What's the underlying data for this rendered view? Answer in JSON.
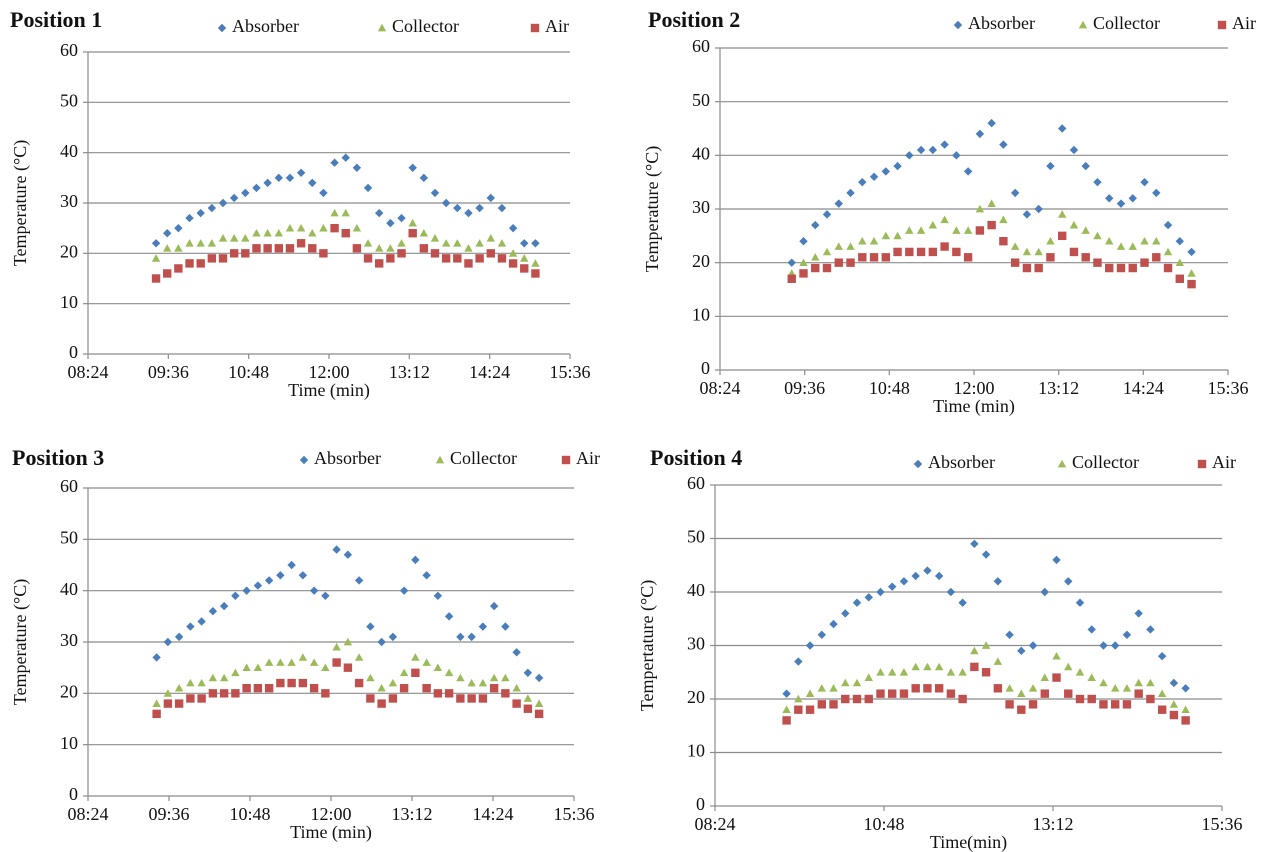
{
  "chart_data": [
    {
      "type": "scatter",
      "title": "Position 1",
      "xlabel": "Time (min)",
      "ylabel": "Temperature (°C)",
      "x": [
        565,
        575,
        585,
        595,
        605,
        615,
        625,
        635,
        645,
        655,
        665,
        675,
        685,
        695,
        705,
        715,
        725,
        735,
        745,
        755,
        765,
        775,
        785,
        795,
        805,
        815,
        825,
        835,
        845,
        855,
        865,
        875,
        885,
        895,
        905
      ],
      "series": [
        {
          "name": "Absorber",
          "color": "#4a7ebb",
          "marker": "diamond",
          "values": [
            22,
            24,
            25,
            27,
            28,
            29,
            30,
            31,
            32,
            33,
            34,
            35,
            35,
            36,
            34,
            32,
            38,
            39,
            37,
            33,
            28,
            26,
            27,
            37,
            35,
            32,
            30,
            29,
            28,
            29,
            31,
            29,
            25,
            22,
            22
          ]
        },
        {
          "name": "Collector",
          "color": "#9bbb59",
          "marker": "triangle",
          "values": [
            19,
            21,
            21,
            22,
            22,
            22,
            23,
            23,
            23,
            24,
            24,
            24,
            25,
            25,
            24,
            25,
            28,
            28,
            25,
            22,
            21,
            21,
            22,
            26,
            24,
            23,
            22,
            22,
            21,
            22,
            23,
            22,
            20,
            19,
            18
          ]
        },
        {
          "name": "Air",
          "color": "#c0504d",
          "marker": "square",
          "values": [
            15,
            16,
            17,
            18,
            18,
            19,
            19,
            20,
            20,
            21,
            21,
            21,
            21,
            22,
            21,
            20,
            25,
            24,
            21,
            19,
            18,
            19,
            20,
            24,
            21,
            20,
            19,
            19,
            18,
            19,
            20,
            19,
            18,
            17,
            16
          ]
        }
      ],
      "xlim": [
        504,
        936
      ],
      "ylim": [
        0,
        60
      ],
      "xticks": [
        {
          "value": 504,
          "label": "08:24"
        },
        {
          "value": 576,
          "label": "09:36"
        },
        {
          "value": 648,
          "label": "10:48"
        },
        {
          "value": 720,
          "label": "12:00"
        },
        {
          "value": 792,
          "label": "13:12"
        },
        {
          "value": 864,
          "label": "14:24"
        },
        {
          "value": 936,
          "label": "15:36"
        }
      ],
      "yticks": [
        0,
        10,
        20,
        30,
        40,
        50,
        60
      ],
      "grid": true
    },
    {
      "type": "scatter",
      "title": "Position 2",
      "xlabel": "Time (min)",
      "ylabel": "Temperature (°C)",
      "x": [
        565,
        575,
        585,
        595,
        605,
        615,
        625,
        635,
        645,
        655,
        665,
        675,
        685,
        695,
        705,
        715,
        725,
        735,
        745,
        755,
        765,
        775,
        785,
        795,
        805,
        815,
        825,
        835,
        845,
        855,
        865,
        875,
        885,
        895,
        905
      ],
      "series": [
        {
          "name": "Absorber",
          "color": "#4a7ebb",
          "marker": "diamond",
          "values": [
            20,
            24,
            27,
            29,
            31,
            33,
            35,
            36,
            37,
            38,
            40,
            41,
            41,
            42,
            40,
            37,
            44,
            46,
            42,
            33,
            29,
            30,
            38,
            45,
            41,
            38,
            35,
            32,
            31,
            32,
            35,
            33,
            27,
            24,
            22
          ]
        },
        {
          "name": "Collector",
          "color": "#9bbb59",
          "marker": "triangle",
          "values": [
            18,
            20,
            21,
            22,
            23,
            23,
            24,
            24,
            25,
            25,
            26,
            26,
            27,
            28,
            26,
            26,
            30,
            31,
            28,
            23,
            22,
            22,
            24,
            29,
            27,
            26,
            25,
            24,
            23,
            23,
            24,
            24,
            22,
            20,
            18
          ]
        },
        {
          "name": "Air",
          "color": "#c0504d",
          "marker": "square",
          "values": [
            17,
            18,
            19,
            19,
            20,
            20,
            21,
            21,
            21,
            22,
            22,
            22,
            22,
            23,
            22,
            21,
            26,
            27,
            24,
            20,
            19,
            19,
            21,
            25,
            22,
            21,
            20,
            19,
            19,
            19,
            20,
            21,
            19,
            17,
            16
          ]
        }
      ],
      "xlim": [
        504,
        936
      ],
      "ylim": [
        0,
        60
      ],
      "xticks": [
        {
          "value": 504,
          "label": "08:24"
        },
        {
          "value": 576,
          "label": "09:36"
        },
        {
          "value": 648,
          "label": "10:48"
        },
        {
          "value": 720,
          "label": "12:00"
        },
        {
          "value": 792,
          "label": "13:12"
        },
        {
          "value": 864,
          "label": "14:24"
        },
        {
          "value": 936,
          "label": "15:36"
        }
      ],
      "yticks": [
        0,
        10,
        20,
        30,
        40,
        50,
        60
      ],
      "grid": true
    },
    {
      "type": "scatter",
      "title": "Position 3",
      "xlabel": "Time (min)",
      "ylabel": "Temperature (°C)",
      "x": [
        565,
        575,
        585,
        595,
        605,
        615,
        625,
        635,
        645,
        655,
        665,
        675,
        685,
        695,
        705,
        715,
        725,
        735,
        745,
        755,
        765,
        775,
        785,
        795,
        805,
        815,
        825,
        835,
        845,
        855,
        865,
        875,
        885,
        895,
        905
      ],
      "series": [
        {
          "name": "Absorber",
          "color": "#4a7ebb",
          "marker": "diamond",
          "values": [
            27,
            30,
            31,
            33,
            34,
            36,
            37,
            39,
            40,
            41,
            42,
            43,
            45,
            43,
            40,
            39,
            48,
            47,
            42,
            33,
            30,
            31,
            40,
            46,
            43,
            39,
            35,
            31,
            31,
            33,
            37,
            33,
            28,
            24,
            23
          ]
        },
        {
          "name": "Collector",
          "color": "#9bbb59",
          "marker": "triangle",
          "values": [
            18,
            20,
            21,
            22,
            22,
            23,
            23,
            24,
            25,
            25,
            26,
            26,
            26,
            27,
            26,
            25,
            29,
            30,
            27,
            23,
            21,
            22,
            24,
            27,
            26,
            25,
            24,
            23,
            22,
            22,
            23,
            23,
            21,
            19,
            18
          ]
        },
        {
          "name": "Air",
          "color": "#c0504d",
          "marker": "square",
          "values": [
            16,
            18,
            18,
            19,
            19,
            20,
            20,
            20,
            21,
            21,
            21,
            22,
            22,
            22,
            21,
            20,
            26,
            25,
            22,
            19,
            18,
            19,
            21,
            24,
            21,
            20,
            20,
            19,
            19,
            19,
            21,
            20,
            18,
            17,
            16
          ]
        }
      ],
      "xlim": [
        504,
        936
      ],
      "ylim": [
        0,
        60
      ],
      "xticks": [
        {
          "value": 504,
          "label": "08:24"
        },
        {
          "value": 576,
          "label": "09:36"
        },
        {
          "value": 648,
          "label": "10:48"
        },
        {
          "value": 720,
          "label": "12:00"
        },
        {
          "value": 792,
          "label": "13:12"
        },
        {
          "value": 864,
          "label": "14:24"
        },
        {
          "value": 936,
          "label": "15:36"
        }
      ],
      "yticks": [
        0,
        10,
        20,
        30,
        40,
        50,
        60
      ],
      "grid": true
    },
    {
      "type": "scatter",
      "title": "Position 4",
      "xlabel": "Time(min)",
      "ylabel": "Tempertature (°C)",
      "x": [
        565,
        575,
        585,
        595,
        605,
        615,
        625,
        635,
        645,
        655,
        665,
        675,
        685,
        695,
        705,
        715,
        725,
        735,
        745,
        755,
        765,
        775,
        785,
        795,
        805,
        815,
        825,
        835,
        845,
        855,
        865,
        875,
        885,
        895,
        905
      ],
      "series": [
        {
          "name": "Absorber",
          "color": "#4a7ebb",
          "marker": "diamond",
          "values": [
            21,
            27,
            30,
            32,
            34,
            36,
            38,
            39,
            40,
            41,
            42,
            43,
            44,
            43,
            40,
            38,
            49,
            47,
            42,
            32,
            29,
            30,
            40,
            46,
            42,
            38,
            33,
            30,
            30,
            32,
            36,
            33,
            28,
            23,
            22
          ]
        },
        {
          "name": "Collector",
          "color": "#9bbb59",
          "marker": "triangle",
          "values": [
            18,
            20,
            21,
            22,
            22,
            23,
            23,
            24,
            25,
            25,
            25,
            26,
            26,
            26,
            25,
            25,
            29,
            30,
            27,
            22,
            21,
            22,
            24,
            28,
            26,
            25,
            24,
            23,
            22,
            22,
            23,
            23,
            21,
            19,
            18
          ]
        },
        {
          "name": "Air",
          "color": "#c0504d",
          "marker": "square",
          "values": [
            16,
            18,
            18,
            19,
            19,
            20,
            20,
            20,
            21,
            21,
            21,
            22,
            22,
            22,
            21,
            20,
            26,
            25,
            22,
            19,
            18,
            19,
            21,
            24,
            21,
            20,
            20,
            19,
            19,
            19,
            21,
            20,
            18,
            17,
            16
          ]
        }
      ],
      "xlim": [
        504,
        936
      ],
      "ylim": [
        0,
        60
      ],
      "xticks": [
        {
          "value": 504,
          "label": "08:24"
        },
        {
          "value": 648,
          "label": "10:48"
        },
        {
          "value": 792,
          "label": "13:12"
        },
        {
          "value": 936,
          "label": "15:36"
        }
      ],
      "yticks": [
        0,
        10,
        20,
        30,
        40,
        50,
        60
      ],
      "grid": true
    }
  ]
}
